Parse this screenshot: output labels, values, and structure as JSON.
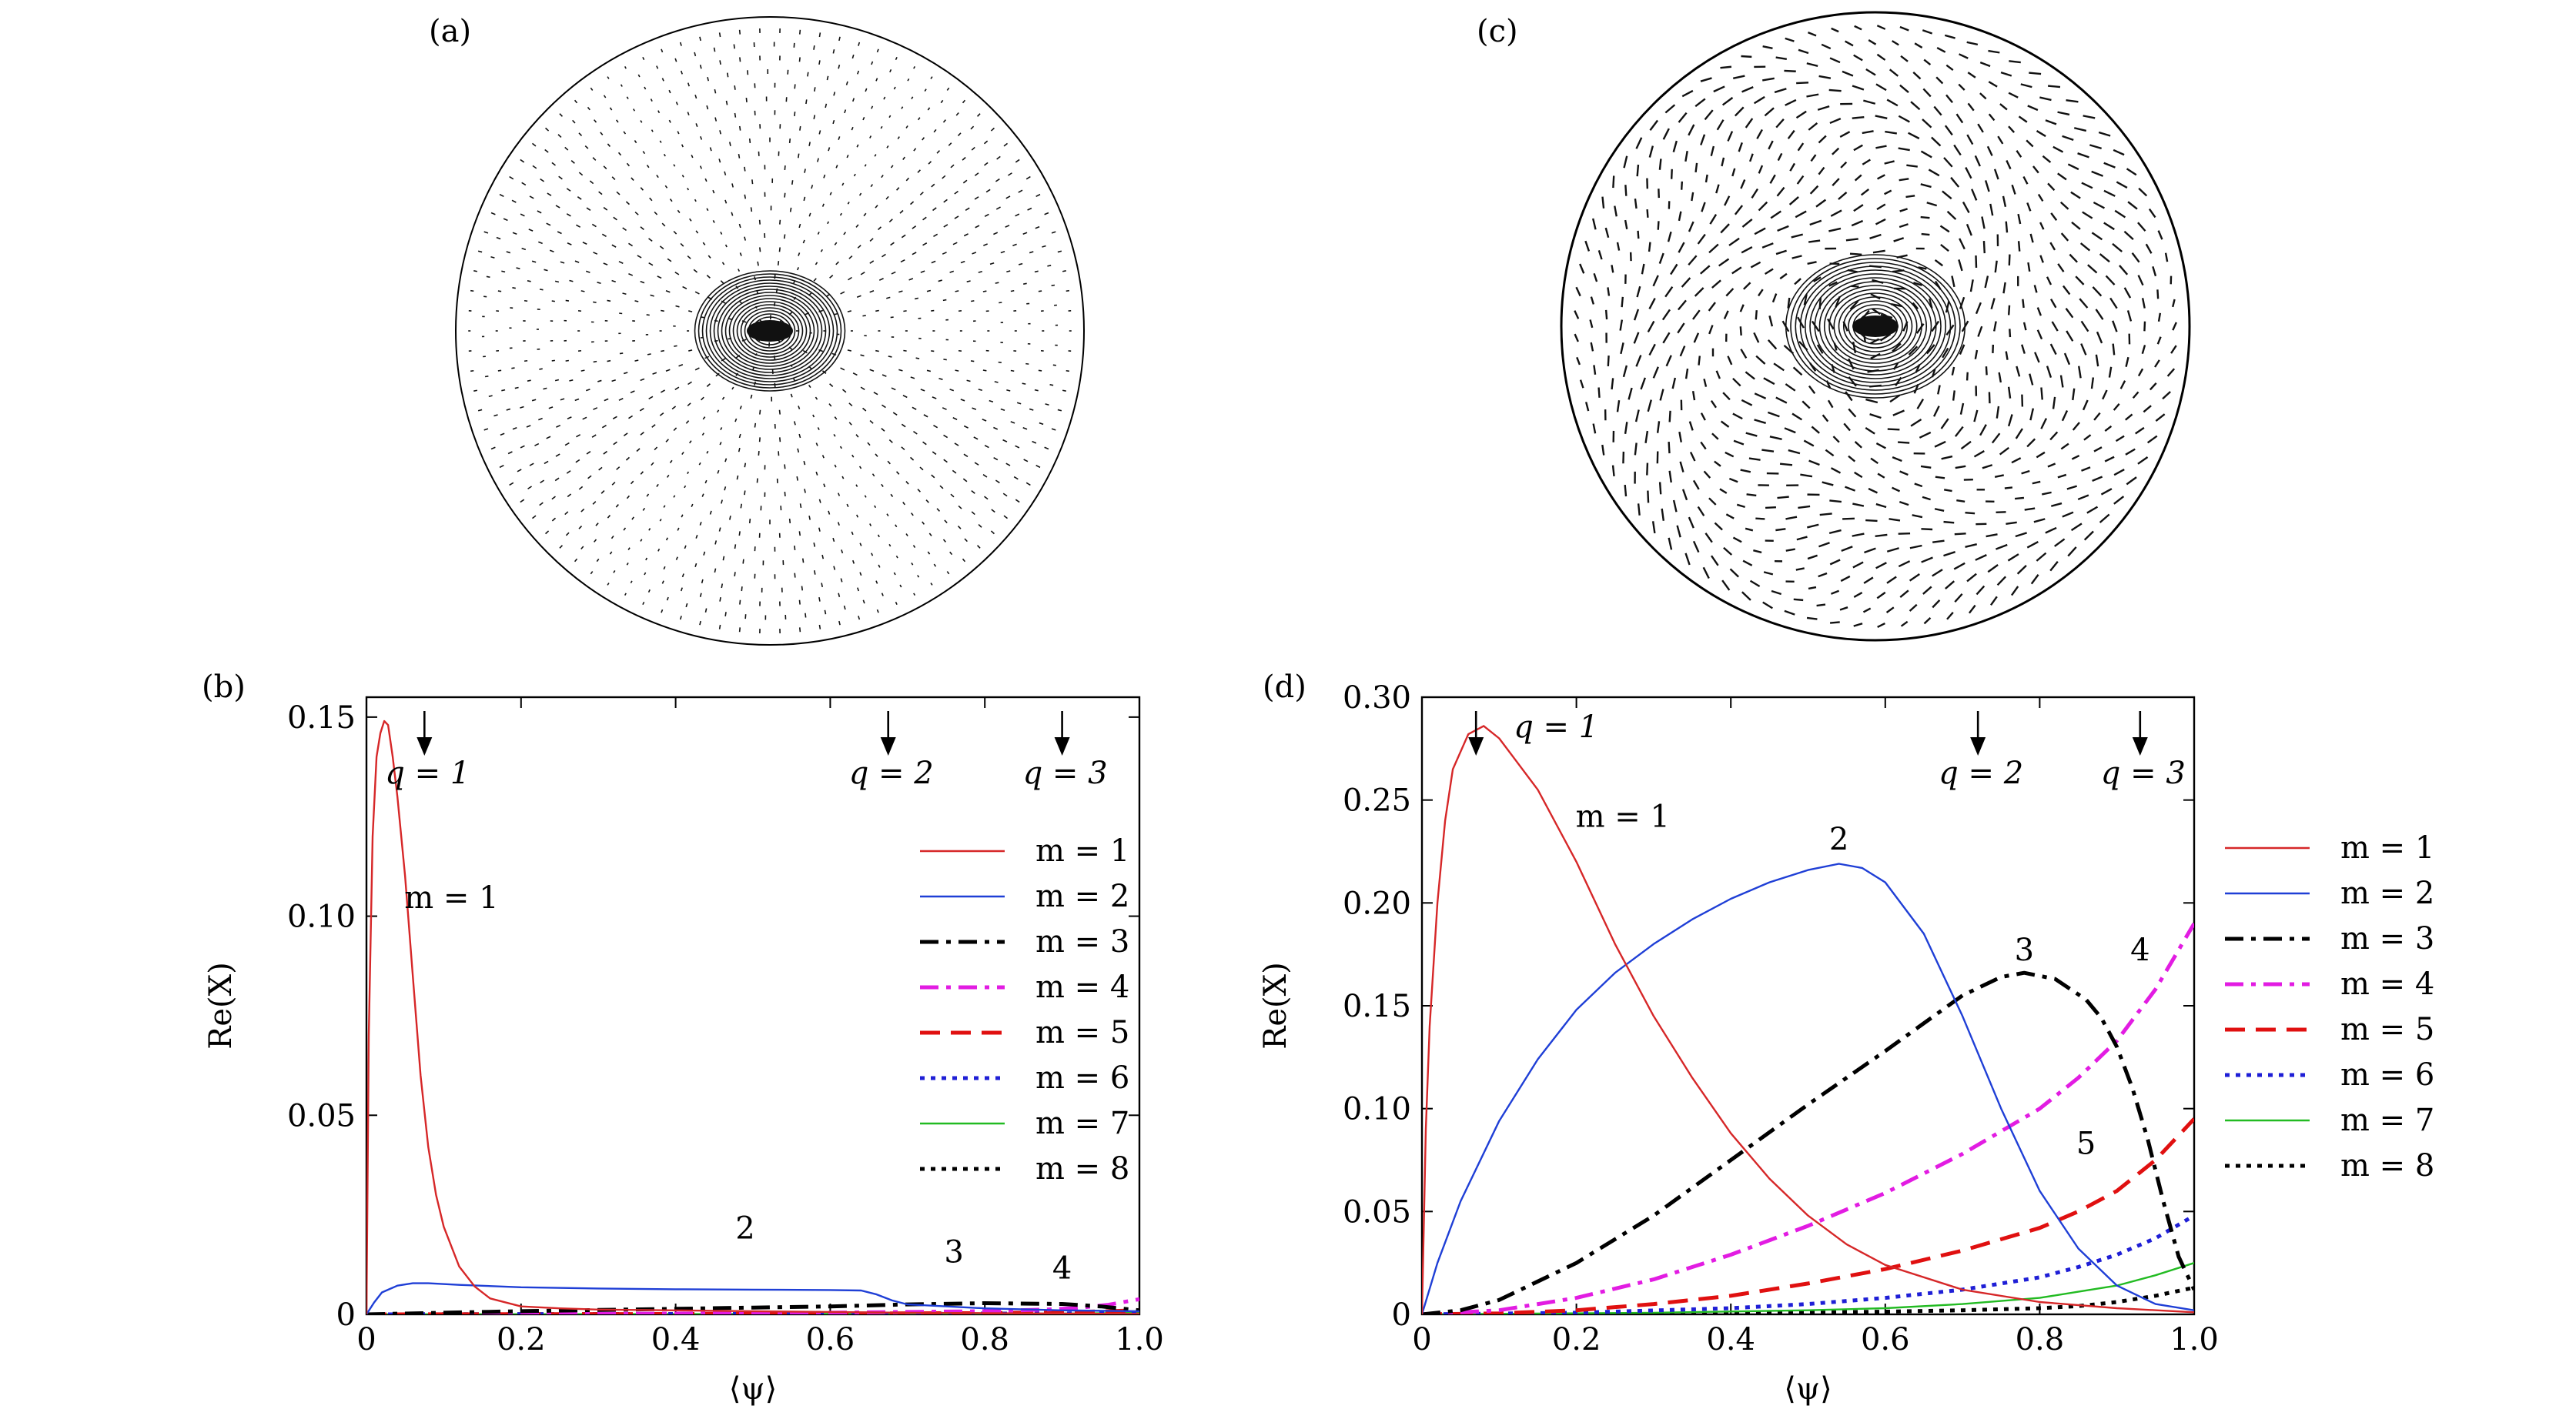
{
  "panels": {
    "a": {
      "label": "(a)"
    },
    "c": {
      "label": "(c)"
    }
  },
  "chart_data": [
    {
      "id": "b",
      "type": "line",
      "panel_label": "(b)",
      "xlabel": "⟨ψ⟩",
      "ylabel": "Re(X)",
      "xlim": [
        0,
        1.0
      ],
      "ylim": [
        0,
        0.155
      ],
      "xticks": [
        "0",
        "0.2",
        "0.4",
        "0.6",
        "0.8",
        "1.0"
      ],
      "yticks": [
        "0",
        "0.05",
        "0.10",
        "0.15"
      ],
      "grid": false,
      "legend_position": "right",
      "series": [
        {
          "name": "m = 1",
          "color": "#d62728",
          "style": "solid",
          "width": 2.4,
          "x": [
            0,
            0.003,
            0.008,
            0.013,
            0.018,
            0.023,
            0.028,
            0.034,
            0.04,
            0.05,
            0.06,
            0.07,
            0.08,
            0.09,
            0.1,
            0.12,
            0.14,
            0.16,
            0.2,
            0.25,
            0.3,
            0.4,
            0.5,
            0.6,
            0.7,
            0.8,
            0.9,
            1.0
          ],
          "y": [
            0,
            0.07,
            0.12,
            0.14,
            0.146,
            0.149,
            0.148,
            0.14,
            0.13,
            0.11,
            0.085,
            0.06,
            0.042,
            0.03,
            0.022,
            0.012,
            0.007,
            0.004,
            0.002,
            0.0015,
            0.0012,
            0.001,
            0.0008,
            0.0006,
            0.0004,
            0.0003,
            0.0002,
            0.0001
          ]
        },
        {
          "name": "m = 2",
          "color": "#1f3fd6",
          "style": "solid",
          "width": 2.4,
          "x": [
            0,
            0.01,
            0.02,
            0.04,
            0.06,
            0.08,
            0.12,
            0.2,
            0.3,
            0.4,
            0.5,
            0.6,
            0.64,
            0.66,
            0.68,
            0.7,
            0.8,
            0.9,
            1.0
          ],
          "y": [
            0,
            0.003,
            0.0055,
            0.0072,
            0.0078,
            0.0078,
            0.0074,
            0.0068,
            0.0065,
            0.0063,
            0.0062,
            0.0061,
            0.006,
            0.005,
            0.0035,
            0.0025,
            0.0015,
            0.001,
            0.0008
          ]
        },
        {
          "name": "m = 3",
          "color": "#000000",
          "style": "dashdot",
          "width": 5,
          "x": [
            0,
            0.1,
            0.2,
            0.3,
            0.4,
            0.5,
            0.6,
            0.7,
            0.8,
            0.9,
            0.95,
            1.0
          ],
          "y": [
            0,
            0.0004,
            0.0008,
            0.0011,
            0.0014,
            0.0017,
            0.002,
            0.0025,
            0.0028,
            0.0026,
            0.002,
            0.001
          ]
        },
        {
          "name": "m = 4",
          "color": "#e21ce2",
          "style": "dashdot",
          "width": 5,
          "x": [
            0,
            0.2,
            0.4,
            0.6,
            0.8,
            0.88,
            0.92,
            0.96,
            1.0
          ],
          "y": [
            0,
            0.0001,
            0.0002,
            0.0004,
            0.0008,
            0.0012,
            0.0016,
            0.0024,
            0.0038
          ]
        },
        {
          "name": "m = 5",
          "color": "#e01010",
          "style": "dashed",
          "width": 5,
          "x": [
            0,
            0.4,
            0.8,
            0.9,
            1.0
          ],
          "y": [
            0,
            0.0001,
            0.0003,
            0.0005,
            0.001
          ]
        },
        {
          "name": "m = 6",
          "color": "#1f1fd6",
          "style": "dotted",
          "width": 5,
          "x": [
            0,
            0.5,
            0.9,
            1.0
          ],
          "y": [
            0,
            0.0001,
            0.0002,
            0.0005
          ]
        },
        {
          "name": "m = 7",
          "color": "#22bb22",
          "style": "solid",
          "width": 2.4,
          "x": [
            0,
            0.5,
            0.9,
            1.0
          ],
          "y": [
            0,
            0.0001,
            0.0002,
            0.0004
          ]
        },
        {
          "name": "m = 8",
          "color": "#000000",
          "style": "dotted",
          "width": 5,
          "x": [
            0,
            0.5,
            0.9,
            1.0
          ],
          "y": [
            0,
            0.0001,
            0.0002,
            0.0003
          ]
        }
      ],
      "annotations": [
        {
          "text": "m = 1",
          "x": 0.11,
          "y": 0.102
        },
        {
          "text": "2",
          "x": 0.49,
          "y": 0.019
        },
        {
          "text": "3",
          "x": 0.76,
          "y": 0.013
        },
        {
          "text": "4",
          "x": 0.9,
          "y": 0.009
        }
      ],
      "arrows": [
        {
          "text": "q = 1",
          "x": 0.075
        },
        {
          "text": "q = 2",
          "x": 0.675
        },
        {
          "text": "q = 3",
          "x": 0.9
        }
      ]
    },
    {
      "id": "d",
      "type": "line",
      "panel_label": "(d)",
      "xlabel": "⟨ψ⟩",
      "ylabel": "Re(X)",
      "xlim": [
        0,
        1.0
      ],
      "ylim": [
        0,
        0.3
      ],
      "xticks": [
        "0",
        "0.2",
        "0.4",
        "0.6",
        "0.8",
        "1.0"
      ],
      "yticks": [
        "0",
        "0.05",
        "0.10",
        "0.15",
        "0.20",
        "0.25",
        "0.30"
      ],
      "grid": false,
      "legend_position": "outside-right",
      "series": [
        {
          "name": "m = 1",
          "color": "#d62728",
          "style": "solid",
          "width": 2.4,
          "x": [
            0,
            0.005,
            0.01,
            0.02,
            0.03,
            0.04,
            0.06,
            0.08,
            0.1,
            0.12,
            0.15,
            0.2,
            0.25,
            0.3,
            0.35,
            0.4,
            0.45,
            0.5,
            0.55,
            0.6,
            0.7,
            0.8,
            0.9,
            1.0
          ],
          "y": [
            0,
            0.09,
            0.14,
            0.2,
            0.24,
            0.265,
            0.282,
            0.286,
            0.28,
            0.27,
            0.255,
            0.22,
            0.18,
            0.145,
            0.115,
            0.088,
            0.066,
            0.048,
            0.034,
            0.024,
            0.012,
            0.006,
            0.003,
            0.001
          ]
        },
        {
          "name": "m = 2",
          "color": "#1f3fd6",
          "style": "solid",
          "width": 2.4,
          "x": [
            0,
            0.02,
            0.05,
            0.1,
            0.15,
            0.2,
            0.25,
            0.3,
            0.35,
            0.4,
            0.45,
            0.5,
            0.54,
            0.57,
            0.6,
            0.65,
            0.7,
            0.75,
            0.8,
            0.85,
            0.9,
            0.95,
            1.0
          ],
          "y": [
            0,
            0.025,
            0.055,
            0.094,
            0.124,
            0.148,
            0.166,
            0.18,
            0.192,
            0.202,
            0.21,
            0.216,
            0.219,
            0.217,
            0.21,
            0.185,
            0.145,
            0.1,
            0.06,
            0.032,
            0.014,
            0.005,
            0.002
          ]
        },
        {
          "name": "m = 3",
          "color": "#000000",
          "style": "dashdot",
          "width": 5,
          "x": [
            0,
            0.05,
            0.1,
            0.2,
            0.3,
            0.4,
            0.5,
            0.6,
            0.7,
            0.75,
            0.78,
            0.82,
            0.86,
            0.88,
            0.9,
            0.92,
            0.94,
            0.96,
            0.98,
            1.0
          ],
          "y": [
            0,
            0.002,
            0.007,
            0.025,
            0.048,
            0.075,
            0.102,
            0.128,
            0.155,
            0.164,
            0.166,
            0.163,
            0.153,
            0.144,
            0.13,
            0.11,
            0.085,
            0.055,
            0.028,
            0.012
          ]
        },
        {
          "name": "m = 4",
          "color": "#e21ce2",
          "style": "dashdot",
          "width": 5,
          "x": [
            0,
            0.1,
            0.2,
            0.3,
            0.4,
            0.5,
            0.6,
            0.7,
            0.8,
            0.85,
            0.9,
            0.95,
            1.0
          ],
          "y": [
            0,
            0.002,
            0.008,
            0.017,
            0.029,
            0.043,
            0.059,
            0.078,
            0.1,
            0.115,
            0.133,
            0.158,
            0.19
          ]
        },
        {
          "name": "m = 5",
          "color": "#e01010",
          "style": "dashed",
          "width": 5,
          "x": [
            0,
            0.1,
            0.2,
            0.3,
            0.4,
            0.5,
            0.6,
            0.7,
            0.8,
            0.85,
            0.9,
            0.95,
            1.0
          ],
          "y": [
            0,
            0.0005,
            0.002,
            0.005,
            0.009,
            0.015,
            0.022,
            0.031,
            0.042,
            0.05,
            0.06,
            0.075,
            0.095
          ]
        },
        {
          "name": "m = 6",
          "color": "#1f1fd6",
          "style": "dotted",
          "width": 5,
          "x": [
            0,
            0.2,
            0.4,
            0.5,
            0.6,
            0.7,
            0.8,
            0.85,
            0.9,
            0.95,
            1.0
          ],
          "y": [
            0,
            0.0008,
            0.003,
            0.005,
            0.008,
            0.012,
            0.018,
            0.023,
            0.029,
            0.037,
            0.048
          ]
        },
        {
          "name": "m = 7",
          "color": "#22bb22",
          "style": "solid",
          "width": 2.4,
          "x": [
            0,
            0.3,
            0.5,
            0.6,
            0.7,
            0.8,
            0.85,
            0.9,
            0.95,
            1.0
          ],
          "y": [
            0,
            0.0008,
            0.002,
            0.003,
            0.005,
            0.008,
            0.011,
            0.014,
            0.019,
            0.025
          ]
        },
        {
          "name": "m = 8",
          "color": "#000000",
          "style": "dotted",
          "width": 5,
          "x": [
            0,
            0.4,
            0.6,
            0.7,
            0.8,
            0.85,
            0.9,
            0.95,
            1.0
          ],
          "y": [
            0,
            0.0005,
            0.0013,
            0.002,
            0.003,
            0.004,
            0.006,
            0.009,
            0.013
          ]
        }
      ],
      "annotations": [
        {
          "text": "m = 1",
          "x": 0.26,
          "y": 0.237
        },
        {
          "text": "2",
          "x": 0.54,
          "y": 0.226
        },
        {
          "text": "3",
          "x": 0.78,
          "y": 0.172
        },
        {
          "text": "4",
          "x": 0.93,
          "y": 0.172
        },
        {
          "text": "5",
          "x": 0.86,
          "y": 0.078
        }
      ],
      "arrows": [
        {
          "text": "q = 1",
          "x": 0.07
        },
        {
          "text": "q = 2",
          "x": 0.72
        },
        {
          "text": "q = 3",
          "x": 0.93
        }
      ]
    }
  ]
}
